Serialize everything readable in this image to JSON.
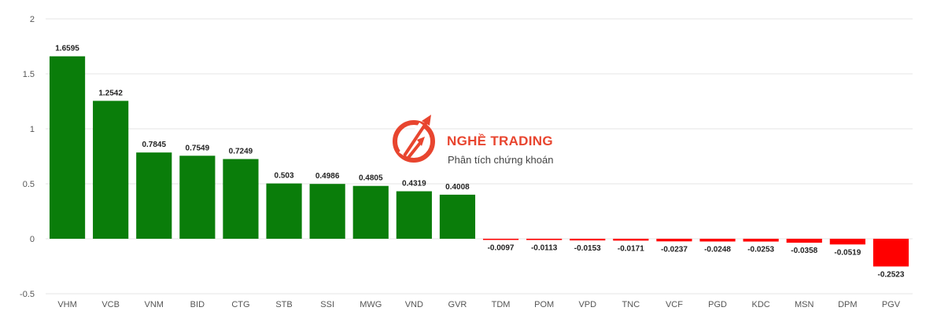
{
  "chart_data": {
    "type": "bar",
    "categories": [
      "VHM",
      "VCB",
      "VNM",
      "BID",
      "CTG",
      "STB",
      "SSI",
      "MWG",
      "VND",
      "GVR",
      "TDM",
      "POM",
      "VPD",
      "TNC",
      "VCF",
      "PGD",
      "KDC",
      "MSN",
      "DPM",
      "PGV"
    ],
    "values": [
      1.6595,
      1.2542,
      0.7845,
      0.7549,
      0.7249,
      0.503,
      0.4986,
      0.4805,
      0.4319,
      0.4008,
      -0.0097,
      -0.0113,
      -0.0153,
      -0.0171,
      -0.0237,
      -0.0248,
      -0.0253,
      -0.0358,
      -0.0519,
      -0.2523
    ],
    "ylim": [
      -0.5,
      2
    ],
    "yticks": [
      -0.5,
      0,
      0.5,
      1,
      1.5,
      2
    ],
    "ytick_labels": [
      "-0.5",
      "0",
      "0.5",
      "1",
      "1.5",
      "2"
    ],
    "colors": {
      "positive": "#0a7d0a",
      "negative": "#ff0000",
      "grid": "#e6e6e6"
    },
    "grid": true,
    "legend": "none"
  },
  "watermark": {
    "brand": "NGHỀ TRADING",
    "tagline": "Phân tích chứng khoán"
  }
}
